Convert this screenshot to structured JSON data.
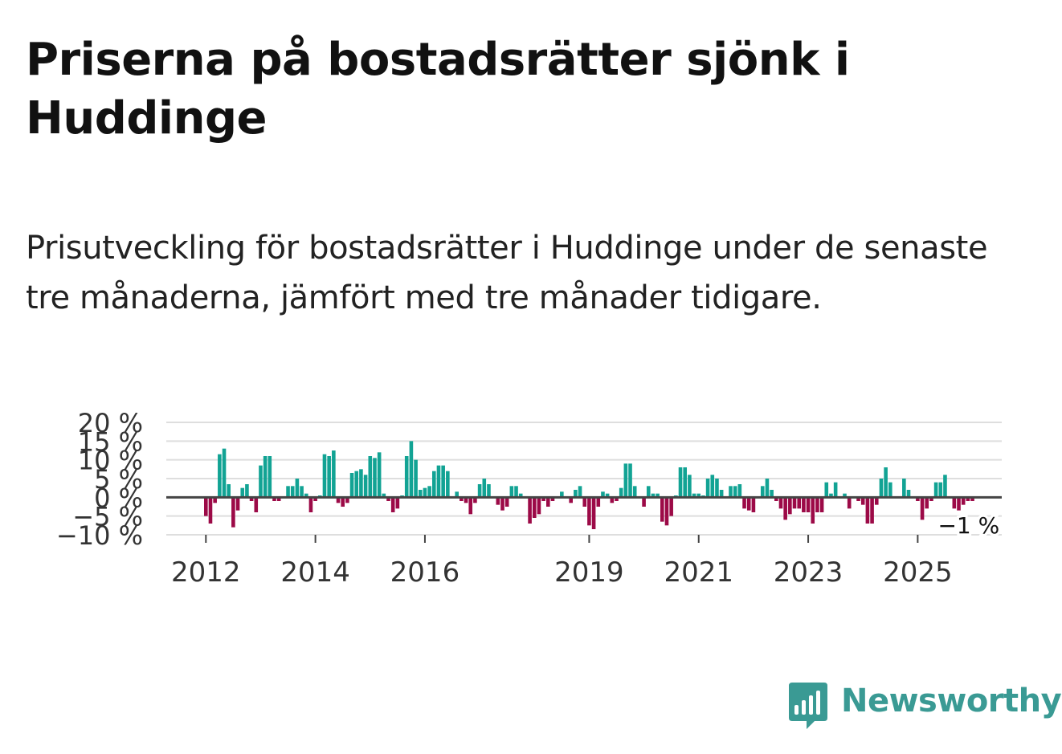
{
  "title": "Priserna på bostadsrätter sjönk i Huddinge",
  "subtitle": "Prisutveckling för bostadsrätter i Huddinge under de senaste tre månaderna, jämfört med tre månader tidigare.",
  "colors": {
    "positive": "#12a394",
    "negative": "#9c0a47",
    "grid": "#dedede",
    "zero_line": "#444444",
    "brand": "#3a9a94"
  },
  "logo": {
    "text": "Newsworthy",
    "icon": "bar-chart-speech-bubble-icon"
  },
  "chart_data": {
    "type": "bar",
    "title": "",
    "xlabel": "",
    "ylabel": "",
    "x_start": "2012-01",
    "x_end": "2025-12",
    "ylim": [
      -10,
      20
    ],
    "y_ticks": [
      -10,
      -5,
      0,
      5,
      10,
      15,
      20
    ],
    "y_tick_labels": [
      "−10 %",
      "−5 %",
      "0 %",
      "5 %",
      "10 %",
      "15 %",
      "20 %"
    ],
    "x_ticks": [
      "2012",
      "2014",
      "2016",
      "2019",
      "2021",
      "2023",
      "2025"
    ],
    "grid": true,
    "annotation": "−1 %",
    "series": [
      {
        "values": [
          -5,
          -7,
          -1.5,
          11.5,
          13,
          3.5,
          -8,
          -3.5,
          2.5,
          3.5,
          -1,
          -4,
          8.5,
          11,
          11,
          -1,
          -1,
          0,
          3,
          3,
          5,
          3,
          1,
          -4,
          -1,
          0.5,
          11.5,
          11,
          12.5,
          -1.5,
          -2.5,
          -1.5,
          6.5,
          7,
          7.5,
          6,
          11,
          10.5,
          12,
          1,
          -1,
          -4,
          -3,
          0.5,
          11,
          15,
          10,
          2,
          2.5,
          3,
          7,
          8.5,
          8.5,
          7,
          0,
          1.5,
          -1,
          -1.5,
          -4.5,
          -1.5,
          3.5,
          5,
          3.5,
          0,
          -2,
          -3.5,
          -2.5,
          3,
          3,
          1,
          0,
          -7,
          -5.5,
          -4.5,
          -1,
          -2.5,
          -1,
          0,
          1.5,
          0,
          -1.5,
          2,
          3,
          -2.5,
          -7.5,
          -8.5,
          -2.5,
          1.5,
          1,
          -1.5,
          -1,
          2.5,
          9,
          9,
          3,
          0,
          -2.5,
          3,
          1,
          1,
          -6.5,
          -7.5,
          -5,
          0.5,
          8,
          8,
          6,
          1,
          1,
          0.5,
          5,
          6,
          5,
          2,
          0,
          3,
          3,
          3.5,
          -3,
          -3.5,
          -4,
          0,
          3,
          5,
          2,
          -1,
          -3,
          -6,
          -4.5,
          -3,
          -3,
          -4,
          -4,
          -7,
          -4,
          -4,
          4,
          1,
          4,
          0,
          1,
          -3,
          0,
          -1,
          -2,
          -7,
          -7,
          -2,
          5,
          8,
          4,
          0,
          0,
          5,
          2,
          0,
          -1,
          -6,
          -3,
          -1,
          4,
          4,
          6,
          0,
          -3,
          -3.5,
          -2,
          -1,
          -1
        ]
      }
    ]
  }
}
